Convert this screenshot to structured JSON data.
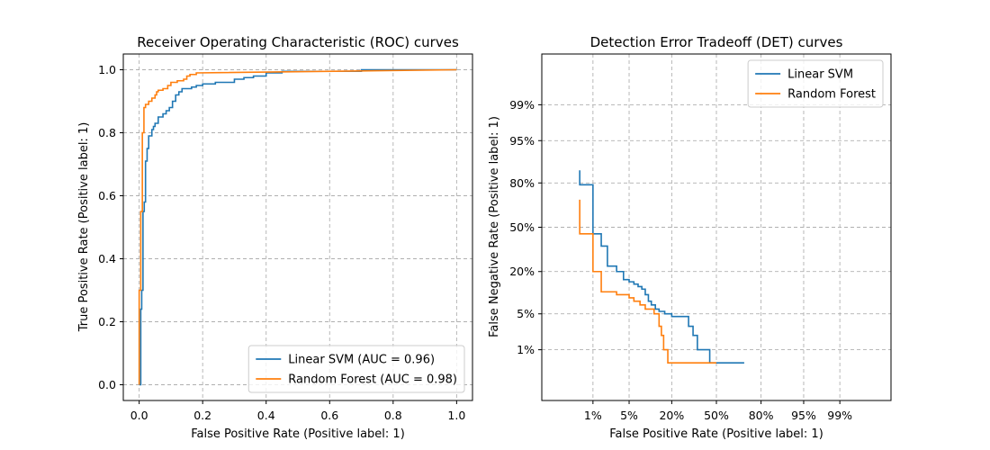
{
  "chart_data": [
    {
      "type": "line",
      "title": "Receiver Operating Characteristic (ROC) curves",
      "xlabel": "False Positive Rate (Positive label: 1)",
      "ylabel": "True Positive Rate (Positive label: 1)",
      "xlim": [
        -0.05,
        1.05
      ],
      "ylim": [
        -0.05,
        1.05
      ],
      "xticks": [
        0.0,
        0.2,
        0.4,
        0.6,
        0.8,
        1.0
      ],
      "xtick_labels": [
        "0.0",
        "0.2",
        "0.4",
        "0.6",
        "0.8",
        "1.0"
      ],
      "yticks": [
        0.0,
        0.2,
        0.4,
        0.6,
        0.8,
        1.0
      ],
      "ytick_labels": [
        "0.0",
        "0.2",
        "0.4",
        "0.6",
        "0.8",
        "1.0"
      ],
      "grid": true,
      "legend_position": "lower-right",
      "series": [
        {
          "name": "Linear SVM (AUC = 0.96)",
          "color": "#1f77b4",
          "x": [
            0.0,
            0.005,
            0.005,
            0.008,
            0.008,
            0.012,
            0.012,
            0.016,
            0.016,
            0.02,
            0.02,
            0.025,
            0.025,
            0.03,
            0.03,
            0.04,
            0.04,
            0.045,
            0.045,
            0.05,
            0.05,
            0.06,
            0.06,
            0.075,
            0.075,
            0.085,
            0.085,
            0.095,
            0.095,
            0.105,
            0.105,
            0.115,
            0.115,
            0.125,
            0.125,
            0.135,
            0.135,
            0.165,
            0.165,
            0.18,
            0.18,
            0.2,
            0.2,
            0.24,
            0.24,
            0.3,
            0.3,
            0.33,
            0.33,
            0.36,
            0.36,
            0.4,
            0.4,
            0.45,
            0.45,
            0.7,
            0.7,
            1.0
          ],
          "y": [
            0.0,
            0.0,
            0.24,
            0.24,
            0.3,
            0.3,
            0.55,
            0.55,
            0.58,
            0.58,
            0.71,
            0.71,
            0.75,
            0.75,
            0.79,
            0.79,
            0.81,
            0.81,
            0.82,
            0.82,
            0.83,
            0.83,
            0.85,
            0.85,
            0.86,
            0.86,
            0.87,
            0.87,
            0.88,
            0.88,
            0.9,
            0.9,
            0.92,
            0.92,
            0.93,
            0.93,
            0.94,
            0.94,
            0.945,
            0.945,
            0.95,
            0.95,
            0.955,
            0.955,
            0.96,
            0.96,
            0.97,
            0.97,
            0.975,
            0.975,
            0.98,
            0.98,
            0.99,
            0.99,
            0.995,
            0.995,
            1.0,
            1.0
          ]
        },
        {
          "name": "Random Forest (AUC = 0.98)",
          "color": "#ff7f0e",
          "x": [
            0.0,
            0.0,
            0.005,
            0.005,
            0.01,
            0.01,
            0.015,
            0.015,
            0.02,
            0.02,
            0.03,
            0.03,
            0.04,
            0.04,
            0.05,
            0.05,
            0.055,
            0.055,
            0.06,
            0.06,
            0.075,
            0.075,
            0.09,
            0.09,
            0.1,
            0.1,
            0.12,
            0.12,
            0.14,
            0.14,
            0.15,
            0.15,
            0.16,
            0.16,
            0.18,
            0.18,
            1.0
          ],
          "y": [
            0.0,
            0.3,
            0.3,
            0.55,
            0.55,
            0.8,
            0.8,
            0.88,
            0.88,
            0.89,
            0.89,
            0.9,
            0.9,
            0.91,
            0.91,
            0.92,
            0.92,
            0.93,
            0.93,
            0.935,
            0.935,
            0.94,
            0.94,
            0.95,
            0.95,
            0.96,
            0.96,
            0.965,
            0.965,
            0.97,
            0.97,
            0.98,
            0.98,
            0.985,
            0.985,
            0.99,
            1.0
          ]
        }
      ]
    },
    {
      "type": "line",
      "title": "Detection Error Tradeoff (DET) curves",
      "xlabel": "False Positive Rate (Positive label: 1)",
      "ylabel": "False Negative Rate (Positive label: 1)",
      "scale": "normal-deviate",
      "xlim": [
        0.0005,
        0.9995
      ],
      "ylim": [
        0.0005,
        0.9995
      ],
      "xticks": [
        0.01,
        0.05,
        0.2,
        0.5,
        0.8,
        0.95,
        0.99
      ],
      "xtick_labels": [
        "1%",
        "5%",
        "20%",
        "50%",
        "80%",
        "95%",
        "99%"
      ],
      "yticks": [
        0.01,
        0.05,
        0.2,
        0.5,
        0.8,
        0.95,
        0.99
      ],
      "ytick_labels": [
        "1%",
        "5%",
        "20%",
        "50%",
        "80%",
        "95%",
        "99%"
      ],
      "grid": true,
      "legend_position": "upper-right",
      "series": [
        {
          "name": "Linear SVM",
          "color": "#1f77b4",
          "x": [
            0.005,
            0.005,
            0.01,
            0.01,
            0.015,
            0.015,
            0.02,
            0.02,
            0.03,
            0.03,
            0.04,
            0.04,
            0.05,
            0.05,
            0.06,
            0.06,
            0.07,
            0.07,
            0.08,
            0.08,
            0.09,
            0.09,
            0.1,
            0.1,
            0.11,
            0.11,
            0.125,
            0.125,
            0.14,
            0.14,
            0.165,
            0.165,
            0.2,
            0.2,
            0.3,
            0.3,
            0.33,
            0.33,
            0.36,
            0.36,
            0.45,
            0.45,
            0.7
          ],
          "y": [
            0.86,
            0.79,
            0.79,
            0.45,
            0.45,
            0.36,
            0.36,
            0.23,
            0.23,
            0.2,
            0.2,
            0.16,
            0.16,
            0.15,
            0.15,
            0.14,
            0.14,
            0.13,
            0.13,
            0.12,
            0.12,
            0.1,
            0.1,
            0.08,
            0.08,
            0.07,
            0.07,
            0.06,
            0.06,
            0.055,
            0.055,
            0.05,
            0.05,
            0.045,
            0.045,
            0.03,
            0.03,
            0.02,
            0.02,
            0.01,
            0.01,
            0.005,
            0.005
          ]
        },
        {
          "name": "Random Forest",
          "color": "#ff7f0e",
          "x": [
            0.005,
            0.005,
            0.01,
            0.01,
            0.015,
            0.015,
            0.03,
            0.03,
            0.05,
            0.05,
            0.06,
            0.06,
            0.075,
            0.075,
            0.09,
            0.09,
            0.12,
            0.12,
            0.14,
            0.14,
            0.15,
            0.15,
            0.16,
            0.16,
            0.18,
            0.18,
            0.36,
            0.36,
            0.5
          ],
          "y": [
            0.7,
            0.45,
            0.45,
            0.2,
            0.2,
            0.11,
            0.11,
            0.1,
            0.1,
            0.09,
            0.09,
            0.08,
            0.08,
            0.07,
            0.07,
            0.06,
            0.06,
            0.05,
            0.05,
            0.03,
            0.03,
            0.02,
            0.02,
            0.01,
            0.01,
            0.005,
            0.005,
            0.005,
            0.005
          ]
        }
      ]
    }
  ]
}
